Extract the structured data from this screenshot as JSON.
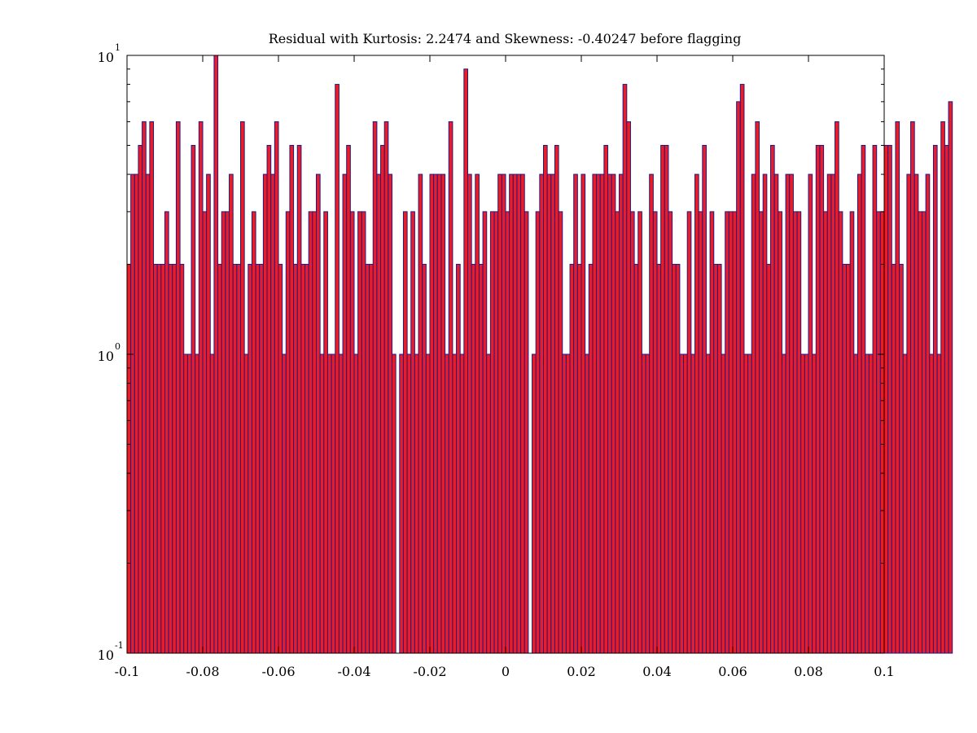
{
  "chart_data": {
    "type": "bar",
    "title": "Residual with Kurtosis: 2.2474 and Skewness: -0.40247 before flagging",
    "xlabel": "",
    "ylabel": "",
    "xlim": [
      -0.1,
      0.1
    ],
    "ylim": [
      0.1,
      10
    ],
    "y_scale": "log",
    "grid": false,
    "legend": "none",
    "colors": {
      "bar_fill": "#ed1c24",
      "bar_edge": "#1a1a8c",
      "axis": "#000000"
    },
    "x_ticks": [
      {
        "value": -0.1,
        "label": "-0.1"
      },
      {
        "value": -0.08,
        "label": "-0.08"
      },
      {
        "value": -0.06,
        "label": "-0.06"
      },
      {
        "value": -0.04,
        "label": "-0.04"
      },
      {
        "value": -0.02,
        "label": "-0.02"
      },
      {
        "value": 0,
        "label": "0"
      },
      {
        "value": 0.02,
        "label": "0.02"
      },
      {
        "value": 0.04,
        "label": "0.04"
      },
      {
        "value": 0.06,
        "label": "0.06"
      },
      {
        "value": 0.08,
        "label": "0.08"
      },
      {
        "value": 0.1,
        "label": "0.1"
      }
    ],
    "y_ticks": [
      {
        "value": 0.1,
        "base": "10",
        "exp": "-1"
      },
      {
        "value": 1,
        "base": "10",
        "exp": "0"
      },
      {
        "value": 10,
        "base": "10",
        "exp": "1"
      }
    ],
    "bin_start": -0.1,
    "bin_width": 0.001,
    "values": [
      2,
      4,
      4,
      5,
      6,
      4,
      6,
      2,
      2,
      2,
      3,
      2,
      2,
      6,
      2,
      1,
      1,
      5,
      1,
      6,
      3,
      4,
      1,
      10,
      2,
      3,
      3,
      4,
      2,
      2,
      6,
      1,
      2,
      3,
      2,
      2,
      4,
      5,
      4,
      6,
      2,
      1,
      3,
      5,
      2,
      5,
      2,
      2,
      3,
      3,
      4,
      1,
      3,
      1,
      1,
      8,
      1,
      4,
      5,
      3,
      1,
      3,
      3,
      2,
      2,
      6,
      4,
      5,
      6,
      4,
      1,
      0,
      1,
      3,
      1,
      3,
      1,
      4,
      2,
      1,
      4,
      4,
      4,
      4,
      1,
      6,
      1,
      2,
      1,
      9,
      4,
      2,
      4,
      2,
      3,
      1,
      3,
      3,
      4,
      4,
      3,
      4,
      4,
      4,
      4,
      3,
      0,
      1,
      3,
      4,
      5,
      4,
      4,
      5,
      3,
      1,
      1,
      2,
      4,
      2,
      4,
      1,
      2,
      4,
      4,
      4,
      5,
      4,
      4,
      3,
      4,
      8,
      6,
      3,
      2,
      3,
      1,
      1,
      4,
      3,
      2,
      5,
      5,
      3,
      2,
      2,
      1,
      1,
      3,
      1,
      4,
      3,
      5,
      1,
      3,
      2,
      2,
      1,
      3,
      3,
      3,
      7,
      8,
      1,
      1,
      4,
      6,
      3,
      4,
      2,
      5,
      4,
      3,
      1,
      4,
      4,
      3,
      3,
      1,
      1,
      4,
      1,
      5,
      5,
      3,
      4,
      4,
      6,
      3,
      2,
      2,
      3,
      1,
      4,
      5,
      1,
      1,
      5,
      3,
      3,
      5,
      5,
      2,
      6,
      2,
      1,
      4,
      6,
      4,
      3,
      3,
      4,
      1,
      5,
      1,
      6,
      5,
      7
    ]
  }
}
